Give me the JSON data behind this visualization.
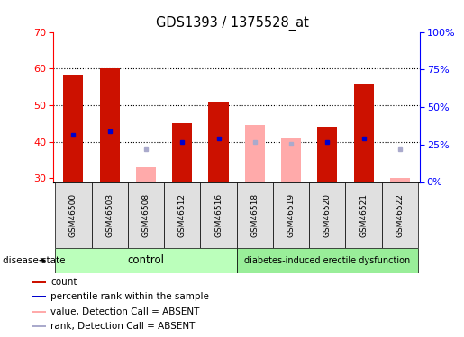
{
  "title": "GDS1393 / 1375528_at",
  "samples": [
    "GSM46500",
    "GSM46503",
    "GSM46508",
    "GSM46512",
    "GSM46516",
    "GSM46518",
    "GSM46519",
    "GSM46520",
    "GSM46521",
    "GSM46522"
  ],
  "counts": [
    58,
    60,
    null,
    45,
    51,
    null,
    null,
    44,
    56,
    null
  ],
  "ranks": [
    42,
    43,
    null,
    40,
    41,
    null,
    null,
    40,
    41,
    null
  ],
  "absent_values": [
    null,
    null,
    33,
    null,
    null,
    44.5,
    41,
    null,
    null,
    30
  ],
  "absent_ranks": [
    null,
    null,
    38,
    null,
    null,
    40,
    39.5,
    null,
    null,
    38
  ],
  "control_label": "control",
  "disease_label": "diabetes-induced erectile dysfunction",
  "disease_state_label": "disease state",
  "ylim_left": [
    29,
    70
  ],
  "ylim_right": [
    0,
    100
  ],
  "yticks_left": [
    30,
    40,
    50,
    60,
    70
  ],
  "yticks_right": [
    0,
    25,
    50,
    75,
    100
  ],
  "yticklabels_right": [
    "0%",
    "25%",
    "50%",
    "75%",
    "100%"
  ],
  "bar_color_present": "#CC1100",
  "rank_color_present": "#0000CC",
  "bar_color_absent": "#FFAAAA",
  "rank_color_absent": "#AAAACC",
  "control_bg": "#BBFFBB",
  "disease_bg": "#99EE99",
  "label_bg": "#E0E0E0",
  "dotted_lines": [
    40,
    50,
    60
  ],
  "legend_items": [
    {
      "label": "count",
      "color": "#CC1100"
    },
    {
      "label": "percentile rank within the sample",
      "color": "#0000CC"
    },
    {
      "label": "value, Detection Call = ABSENT",
      "color": "#FFAAAA"
    },
    {
      "label": "rank, Detection Call = ABSENT",
      "color": "#AAAACC"
    }
  ]
}
